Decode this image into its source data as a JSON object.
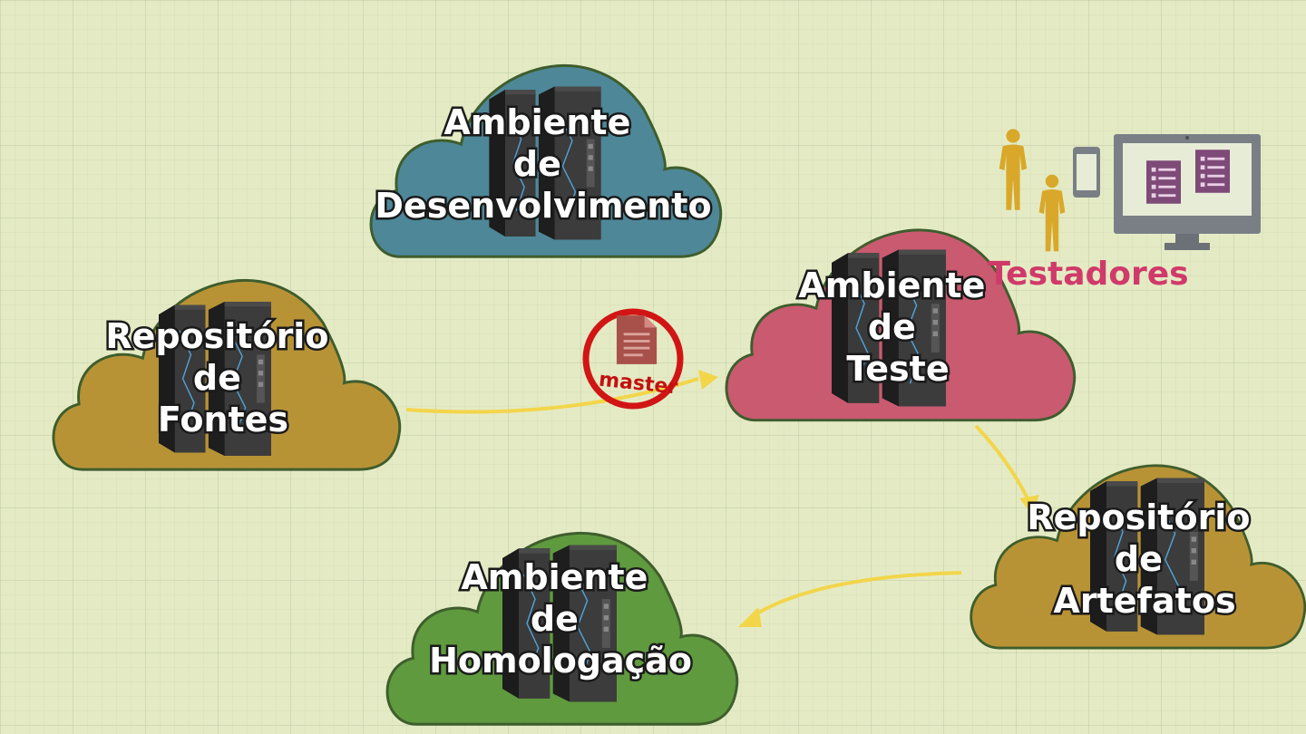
{
  "clouds": {
    "dev": {
      "lines": [
        "Ambiente",
        "de",
        "Desenvolvimento"
      ],
      "color": "#4d8798"
    },
    "source": {
      "lines": [
        "Repositório",
        "de",
        "Fontes"
      ],
      "color": "#b89336"
    },
    "test": {
      "lines": [
        "Ambiente",
        "de",
        "Teste"
      ],
      "color": "#c95a70"
    },
    "artifacts": {
      "lines": [
        "Repositório",
        "de",
        "Artefatos"
      ],
      "color": "#b89336"
    },
    "staging": {
      "lines": [
        "Ambiente",
        "de",
        "Homologação"
      ],
      "color": "#5f9a3e"
    }
  },
  "testers": {
    "label": "Testadores",
    "label_color": "#d03a6a"
  },
  "master_doc": {
    "label": "master",
    "circle_color": "#d11515"
  },
  "arrow_color": "#f3d54a",
  "icons": {
    "server": "mainframe-server-icon",
    "person": "person-icon",
    "phone": "mobile-phone-icon",
    "monitor": "desktop-monitor-icon",
    "document": "document-icon"
  }
}
